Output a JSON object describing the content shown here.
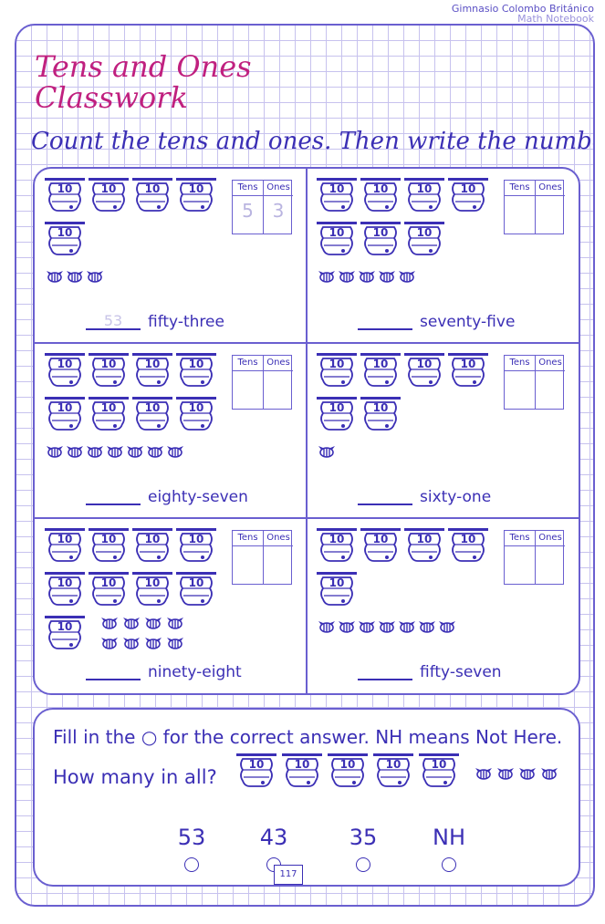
{
  "header": {
    "school": "Gimnasio Colombo Británico",
    "subtitle": "Math Notebook"
  },
  "title": {
    "line1": "Tens and Ones",
    "line2": "Classwork"
  },
  "instruction": "Count the tens and ones. Then write the numbers.",
  "table_labels": {
    "tens": "Tens",
    "ones": "Ones"
  },
  "hive_label": "10",
  "problems": [
    {
      "tens_count": 5,
      "ones_count": 3,
      "answer": "53",
      "word": "fifty-three",
      "tens_value": "5",
      "ones_value": "3"
    },
    {
      "tens_count": 7,
      "ones_count": 5,
      "answer": "",
      "word": "seventy-five",
      "tens_value": "",
      "ones_value": ""
    },
    {
      "tens_count": 8,
      "ones_count": 7,
      "answer": "",
      "word": "eighty-seven",
      "tens_value": "",
      "ones_value": ""
    },
    {
      "tens_count": 6,
      "ones_count": 1,
      "answer": "",
      "word": "sixty-one",
      "tens_value": "",
      "ones_value": ""
    },
    {
      "tens_count": 9,
      "ones_count": 8,
      "answer": "",
      "word": "ninety-eight",
      "tens_value": "",
      "ones_value": ""
    },
    {
      "tens_count": 5,
      "ones_count": 7,
      "answer": "",
      "word": "fifty-seven",
      "tens_value": "",
      "ones_value": ""
    }
  ],
  "quiz": {
    "instruction": "Fill in the ○ for the correct answer. NH means Not Here.",
    "question": "How many in all?",
    "tens_count": 5,
    "ones_count": 4,
    "options": [
      "53",
      "43",
      "35",
      "NH"
    ]
  },
  "page_number": "117",
  "colors": {
    "accent": "#3b2fb5",
    "title": "#c0207f",
    "grid": "#c7c2ee"
  }
}
